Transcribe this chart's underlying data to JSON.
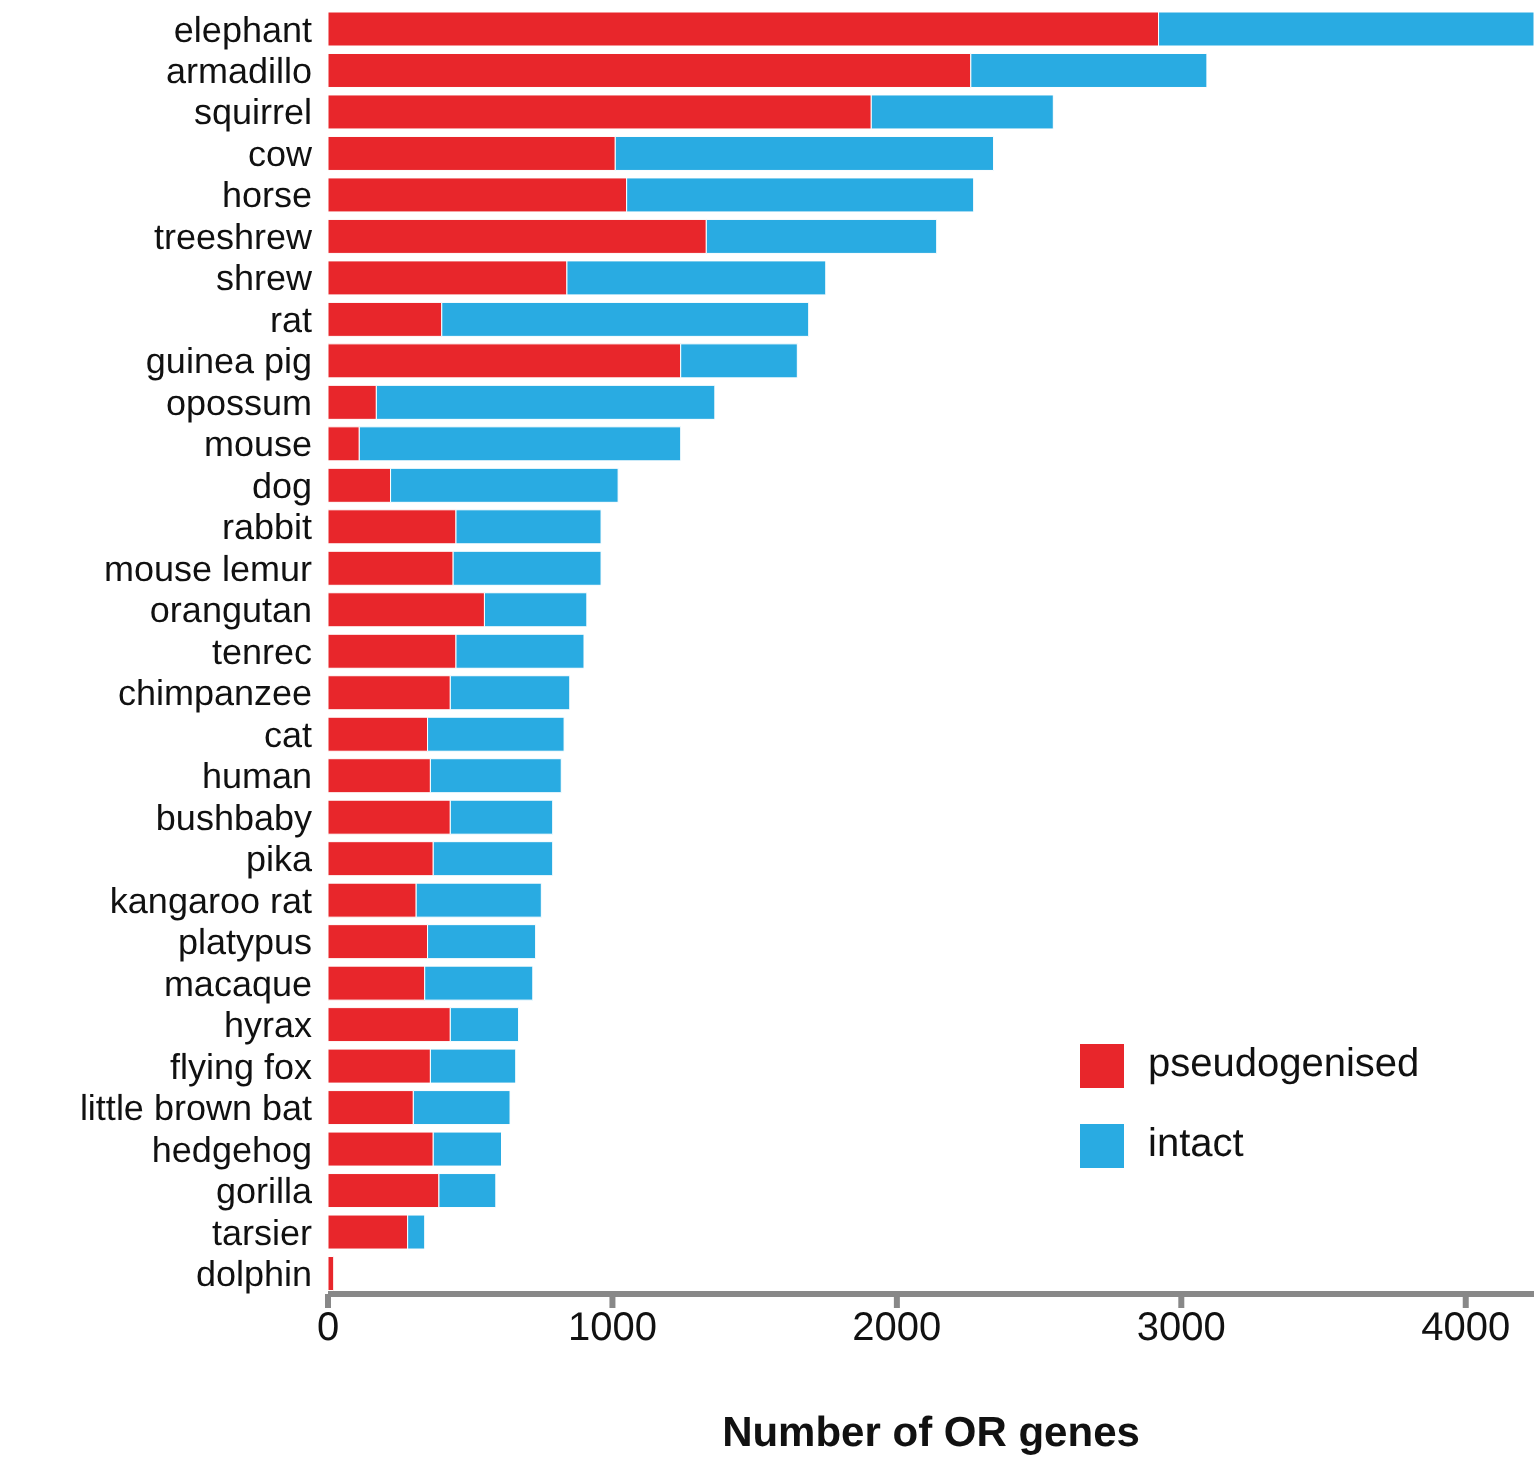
{
  "chart_data": {
    "type": "bar",
    "orientation": "horizontal",
    "stacked": true,
    "xlabel": "Number of OR genes",
    "categories": [
      "elephant",
      "armadillo",
      "squirrel",
      "cow",
      "horse",
      "treeshrew",
      "shrew",
      "rat",
      "guinea pig",
      "opossum",
      "mouse",
      "dog",
      "rabbit",
      "mouse lemur",
      "orangutan",
      "tenrec",
      "chimpanzee",
      "cat",
      "human",
      "bushbaby",
      "pika",
      "kangaroo rat",
      "platypus",
      "macaque",
      "hyrax",
      "flying fox",
      "little brown bat",
      "hedgehog",
      "gorilla",
      "tarsier",
      "dolphin"
    ],
    "series": [
      {
        "name": "pseudogenised",
        "color": "#e8262b",
        "values": [
          2920,
          2260,
          1910,
          1010,
          1050,
          1330,
          840,
          400,
          1240,
          170,
          110,
          220,
          450,
          440,
          550,
          450,
          430,
          350,
          360,
          430,
          370,
          310,
          350,
          340,
          430,
          360,
          300,
          370,
          390,
          280,
          20
        ]
      },
      {
        "name": "intact",
        "color": "#29abe2",
        "values": [
          1320,
          830,
          640,
          1330,
          1220,
          810,
          910,
          1290,
          410,
          1190,
          1130,
          800,
          510,
          520,
          360,
          450,
          420,
          480,
          460,
          360,
          420,
          440,
          380,
          380,
          240,
          300,
          340,
          240,
          200,
          60,
          0
        ]
      }
    ],
    "xlim": [
      0,
      4240
    ],
    "xticks": [
      0,
      1000,
      2000,
      3000,
      4000
    ],
    "grid": false,
    "legend": "bottom right"
  }
}
